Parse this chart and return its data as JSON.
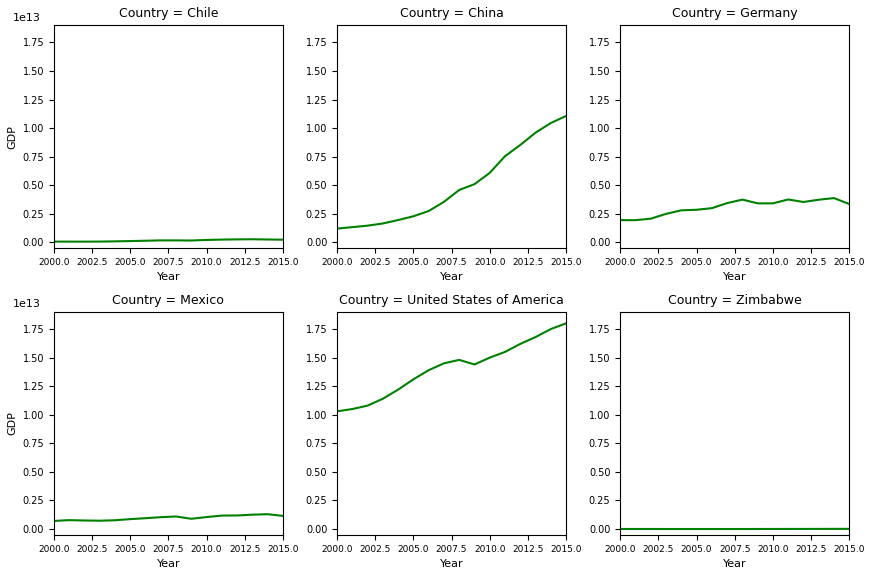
{
  "countries": [
    "Chile",
    "China",
    "Germany",
    "Mexico",
    "United States of America",
    "Zimbabwe"
  ],
  "years": [
    2000,
    2001,
    2002,
    2003,
    2004,
    2005,
    2006,
    2007,
    2008,
    2009,
    2010,
    2011,
    2012,
    2013,
    2014,
    2015
  ],
  "gdp": {
    "Chile": [
      75000000000.0,
      71000000000.0,
      70000000000.0,
      77000000000.0,
      96000000000.0,
      120000000000.0,
      150000000000.0,
      180000000000.0,
      180000000000.0,
      170000000000.0,
      220000000000.0,
      250000000000.0,
      270000000000.0,
      280000000000.0,
      260000000000.0,
      240000000000.0
    ],
    "China": [
      1210000000000.0,
      1340000000000.0,
      1470000000000.0,
      1660000000000.0,
      1960000000000.0,
      2290000000000.0,
      2750000000000.0,
      3550000000000.0,
      4590000000000.0,
      5100000000000.0,
      6090000000000.0,
      7550000000000.0,
      8530000000000.0,
      9610000000000.0,
      10450000000000.0,
      11070000000000.0
    ],
    "Germany": [
      1950000000000.0,
      1950000000000.0,
      2080000000000.0,
      2500000000000.0,
      2810000000000.0,
      2860000000000.0,
      3000000000000.0,
      3440000000000.0,
      3750000000000.0,
      3420000000000.0,
      3420000000000.0,
      3760000000000.0,
      3540000000000.0,
      3740000000000.0,
      3880000000000.0,
      3360000000000.0
    ],
    "Mexico": [
      710000000000.0,
      780000000000.0,
      750000000000.0,
      730000000000.0,
      770000000000.0,
      870000000000.0,
      950000000000.0,
      1040000000000.0,
      1100000000000.0,
      900000000000.0,
      1050000000000.0,
      1180000000000.0,
      1190000000000.0,
      1260000000000.0,
      1300000000000.0,
      1150000000000.0
    ],
    "United States of America": [
      10300000000000.0,
      10500000000000.0,
      10800000000000.0,
      11400000000000.0,
      12200000000000.0,
      13100000000000.0,
      13900000000000.0,
      14500000000000.0,
      14800000000000.0,
      14400000000000.0,
      15000000000000.0,
      15500000000000.0,
      16200000000000.0,
      16800000000000.0,
      17500000000000.0,
      18000000000000.0
    ],
    "Zimbabwe": [
      6700000000.0,
      6500000000.0,
      6300000000.0,
      5800000000.0,
      5500000000.0,
      5000000000.0,
      4500000000.0,
      3600000000.0,
      4400000000.0,
      6700000000.0,
      8200000000.0,
      10300000000.0,
      11800000000.0,
      13600000000.0,
      14800000000.0,
      16200000000.0
    ]
  },
  "line_color": "#008000",
  "line_width": 1.5,
  "background_color": "#ffffff",
  "ylabel": "GDP",
  "xlabel": "Year",
  "nrows": 2,
  "ncols": 3,
  "xticks": [
    2000.0,
    2002.5,
    2005.0,
    2007.5,
    2010.0,
    2012.5,
    2015.0
  ],
  "xtick_labels": [
    "2000.0",
    "2002.5",
    "2005.0",
    "2007.5",
    "2010.0",
    "2012.5",
    "2015.0"
  ]
}
